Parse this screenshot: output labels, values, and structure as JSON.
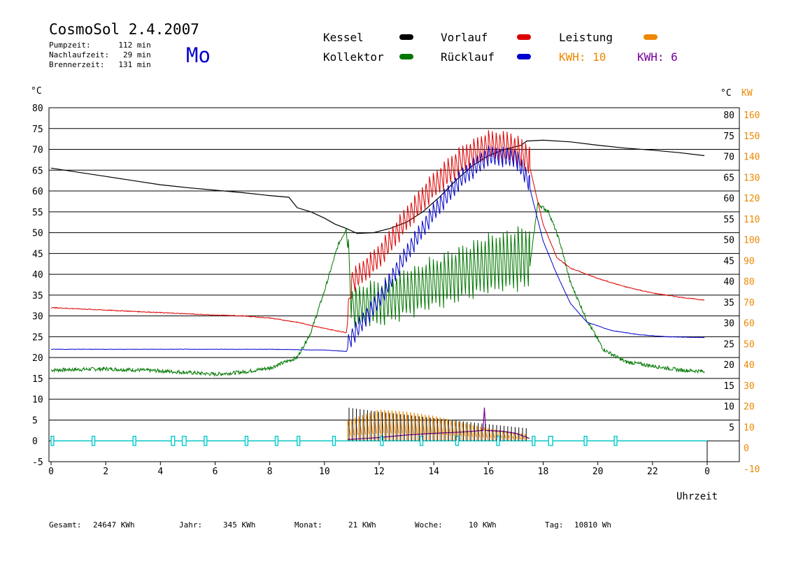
{
  "header": {
    "title": "CosmoSol 2.4.2007",
    "day": "Mo",
    "pumpzeit": "Pumpzeit:      112 min",
    "nachlaufzeit": "Nachlaufzeit:   29 min",
    "brennerzeit": "Brennerzeit:   131 min"
  },
  "legend": {
    "kessel": {
      "label": "Kessel",
      "color": "#000000"
    },
    "kollektor": {
      "label": "Kollektor",
      "color": "#007700"
    },
    "vorlauf": {
      "label": "Vorlauf",
      "color": "#dd0000"
    },
    "ruecklauf": {
      "label": "Rücklauf",
      "color": "#0000cc"
    },
    "leistung": {
      "label": "Leistung",
      "color": "#ee8800"
    },
    "kwh_orange": {
      "label": "KWH: 10",
      "color": "#ee8800"
    },
    "kwh_purple": {
      "label": "KWH: 6",
      "color": "#770099"
    }
  },
  "footer": {
    "gesamt_label": "Gesamt:",
    "gesamt_value": "24647 KWh",
    "jahr_label": "Jahr:",
    "jahr_value": "345 KWh",
    "monat_label": "Monat:",
    "monat_value": "21 KWh",
    "woche_label": "Woche:",
    "woche_value": "10 KWh",
    "tag_label": "Tag:",
    "tag_value": "10810 Wh"
  },
  "chart_data": {
    "type": "line",
    "xlabel": "Uhrzeit",
    "ylabel_left": "°C",
    "ylabel_right_1": "°C",
    "ylabel_right_2": "KW",
    "xlim": [
      0,
      24
    ],
    "ylim": [
      -5,
      80
    ],
    "x_ticks": [
      "0",
      "2",
      "4",
      "6",
      "8",
      "10",
      "12",
      "14",
      "16",
      "18",
      "20",
      "22",
      "0"
    ],
    "y_ticks_left": [
      "80",
      "75",
      "70",
      "65",
      "60",
      "55",
      "50",
      "45",
      "40",
      "35",
      "30",
      "25",
      "20",
      "15",
      "10",
      "5",
      "0",
      "-5"
    ],
    "y_ticks_right_c": [
      "80",
      "75",
      "70",
      "65",
      "60",
      "55",
      "50",
      "45",
      "40",
      "35",
      "30",
      "25",
      "20",
      "15",
      "10",
      "5"
    ],
    "y_ticks_right_kw": [
      "160",
      "150",
      "140",
      "130",
      "120",
      "110",
      "100",
      "90",
      "80",
      "70",
      "60",
      "50",
      "40",
      "30",
      "20",
      "10",
      "0",
      "-10"
    ],
    "grid": true,
    "series": [
      {
        "name": "Kessel",
        "color": "#000000",
        "kind": "smooth",
        "points": [
          [
            0,
            65.5
          ],
          [
            1,
            64.5
          ],
          [
            2,
            63.5
          ],
          [
            3,
            62.5
          ],
          [
            4,
            61.5
          ],
          [
            5,
            60.8
          ],
          [
            6,
            60.2
          ],
          [
            7,
            59.6
          ],
          [
            8,
            58.9
          ],
          [
            8.7,
            58.5
          ],
          [
            9,
            56
          ],
          [
            9.5,
            55
          ],
          [
            10,
            53.5
          ],
          [
            10.4,
            52
          ],
          [
            10.8,
            51
          ],
          [
            11.2,
            49.8
          ],
          [
            11.8,
            50
          ],
          [
            12.4,
            51
          ],
          [
            13,
            52.5
          ],
          [
            13.6,
            55
          ],
          [
            14.2,
            58.5
          ],
          [
            14.8,
            62.5
          ],
          [
            15.4,
            66
          ],
          [
            16,
            68.5
          ],
          [
            16.6,
            70
          ],
          [
            17.2,
            71
          ],
          [
            17.4,
            72
          ],
          [
            18,
            72.2
          ],
          [
            19,
            71.8
          ],
          [
            20,
            71
          ],
          [
            21,
            70.3
          ],
          [
            22,
            69.8
          ],
          [
            23,
            69.2
          ],
          [
            23.9,
            68.5
          ]
        ]
      },
      {
        "name": "Kollektor",
        "color": "#007700",
        "kind": "osc",
        "base": [
          [
            0,
            17
          ],
          [
            2,
            17.3
          ],
          [
            4,
            16.8
          ],
          [
            6,
            16
          ],
          [
            7,
            16.5
          ],
          [
            8,
            17.5
          ],
          [
            9,
            20
          ],
          [
            9.5,
            26
          ],
          [
            10,
            36
          ],
          [
            10.5,
            47
          ],
          [
            10.8,
            51
          ],
          [
            11,
            30
          ],
          [
            12,
            31
          ],
          [
            13,
            33
          ],
          [
            14,
            35.5
          ],
          [
            15,
            37.5
          ],
          [
            16,
            39.5
          ],
          [
            17,
            40.5
          ],
          [
            17.5,
            41
          ],
          [
            17.8,
            57
          ],
          [
            18.2,
            55
          ],
          [
            18.6,
            48
          ],
          [
            19,
            38
          ],
          [
            19.6,
            29
          ],
          [
            20.2,
            22
          ],
          [
            21,
            19
          ],
          [
            22,
            18
          ],
          [
            23,
            17
          ],
          [
            23.9,
            16.7
          ]
        ],
        "osc_start": 10.85,
        "osc_end": 17.5,
        "osc_amp": 10,
        "osc_amp_end": 16,
        "noise": 0.45
      },
      {
        "name": "Vorlauf",
        "color": "#dd0000",
        "kind": "osc",
        "base": [
          [
            0,
            32
          ],
          [
            2,
            31.4
          ],
          [
            4,
            30.8
          ],
          [
            6,
            30.2
          ],
          [
            7,
            30
          ],
          [
            8,
            29.5
          ],
          [
            9,
            28.5
          ],
          [
            10,
            27
          ],
          [
            10.8,
            26
          ],
          [
            11,
            37
          ],
          [
            12,
            43
          ],
          [
            13,
            52
          ],
          [
            14,
            60
          ],
          [
            15,
            66
          ],
          [
            16,
            69.5
          ],
          [
            16.8,
            69
          ],
          [
            17.5,
            66
          ],
          [
            18,
            52
          ],
          [
            18.5,
            44
          ],
          [
            19,
            41.5
          ],
          [
            20,
            39
          ],
          [
            21,
            37
          ],
          [
            22,
            35.5
          ],
          [
            23,
            34.5
          ],
          [
            23.9,
            33.8
          ]
        ],
        "osc_start": 10.85,
        "osc_end": 17.5,
        "osc_amp": 6,
        "osc_amp_end": 8,
        "noise": 0.1
      },
      {
        "name": "Rücklauf",
        "color": "#0000cc",
        "kind": "osc",
        "base": [
          [
            0,
            22
          ],
          [
            2,
            22
          ],
          [
            4,
            22
          ],
          [
            6,
            22
          ],
          [
            8,
            22
          ],
          [
            10,
            21.8
          ],
          [
            10.8,
            21.5
          ],
          [
            11,
            24
          ],
          [
            12,
            33
          ],
          [
            13,
            44
          ],
          [
            14,
            54
          ],
          [
            15,
            62
          ],
          [
            16,
            67.5
          ],
          [
            17,
            67
          ],
          [
            17.5,
            61
          ],
          [
            18,
            48
          ],
          [
            18.5,
            40
          ],
          [
            19,
            33
          ],
          [
            19.6,
            28.5
          ],
          [
            20.5,
            26.5
          ],
          [
            21.5,
            25.5
          ],
          [
            22.5,
            25
          ],
          [
            23.9,
            24.8
          ]
        ],
        "osc_start": 10.85,
        "osc_end": 17.5,
        "osc_amp": 5,
        "osc_amp_end": 5,
        "noise": 0.05
      },
      {
        "name": "Leistung",
        "color": "#ee8800",
        "kind": "spikes",
        "start": 10.85,
        "end": 17.45,
        "peaks": [
          [
            10.85,
            5
          ],
          [
            12,
            7.5
          ],
          [
            13,
            7
          ],
          [
            14,
            6
          ],
          [
            15,
            4.5
          ],
          [
            16,
            3
          ],
          [
            17,
            2
          ],
          [
            17.45,
            1.5
          ]
        ]
      },
      {
        "name": "KWH",
        "color": "#770099",
        "kind": "line",
        "points": [
          [
            10.85,
            0.3
          ],
          [
            12,
            0.8
          ],
          [
            13,
            1.4
          ],
          [
            14,
            1.8
          ],
          [
            15,
            2.1
          ],
          [
            15.8,
            2.5
          ],
          [
            15.85,
            8
          ],
          [
            15.9,
            2.5
          ],
          [
            16.5,
            2.3
          ],
          [
            17,
            1.8
          ],
          [
            17.5,
            0.6
          ]
        ]
      },
      {
        "name": "Pumpe",
        "color": "#00cccc",
        "kind": "pulses",
        "baseline": 0,
        "height": 2.2,
        "pulses": [
          [
            0,
            0.1
          ],
          [
            1.5,
            0.1
          ],
          [
            3,
            0.1
          ],
          [
            4.4,
            0.12
          ],
          [
            4.8,
            0.14
          ],
          [
            5.6,
            0.1
          ],
          [
            7.1,
            0.1
          ],
          [
            8.2,
            0.1
          ],
          [
            9,
            0.1
          ],
          [
            10.3,
            0.1
          ],
          [
            12.05,
            0.1
          ],
          [
            13.5,
            0.1
          ],
          [
            14.8,
            0.1
          ],
          [
            16.3,
            0.1
          ],
          [
            17.6,
            0.1
          ],
          [
            18.2,
            0.15
          ],
          [
            19.5,
            0.1
          ],
          [
            20.6,
            0.1
          ]
        ]
      },
      {
        "name": "Brenner",
        "color": "#000000",
        "kind": "bars",
        "start": 10.85,
        "end": 17.45,
        "values": [
          [
            10.85,
            8
          ],
          [
            12,
            7
          ],
          [
            14,
            5.5
          ],
          [
            16,
            4
          ],
          [
            17.45,
            3
          ]
        ]
      }
    ]
  }
}
